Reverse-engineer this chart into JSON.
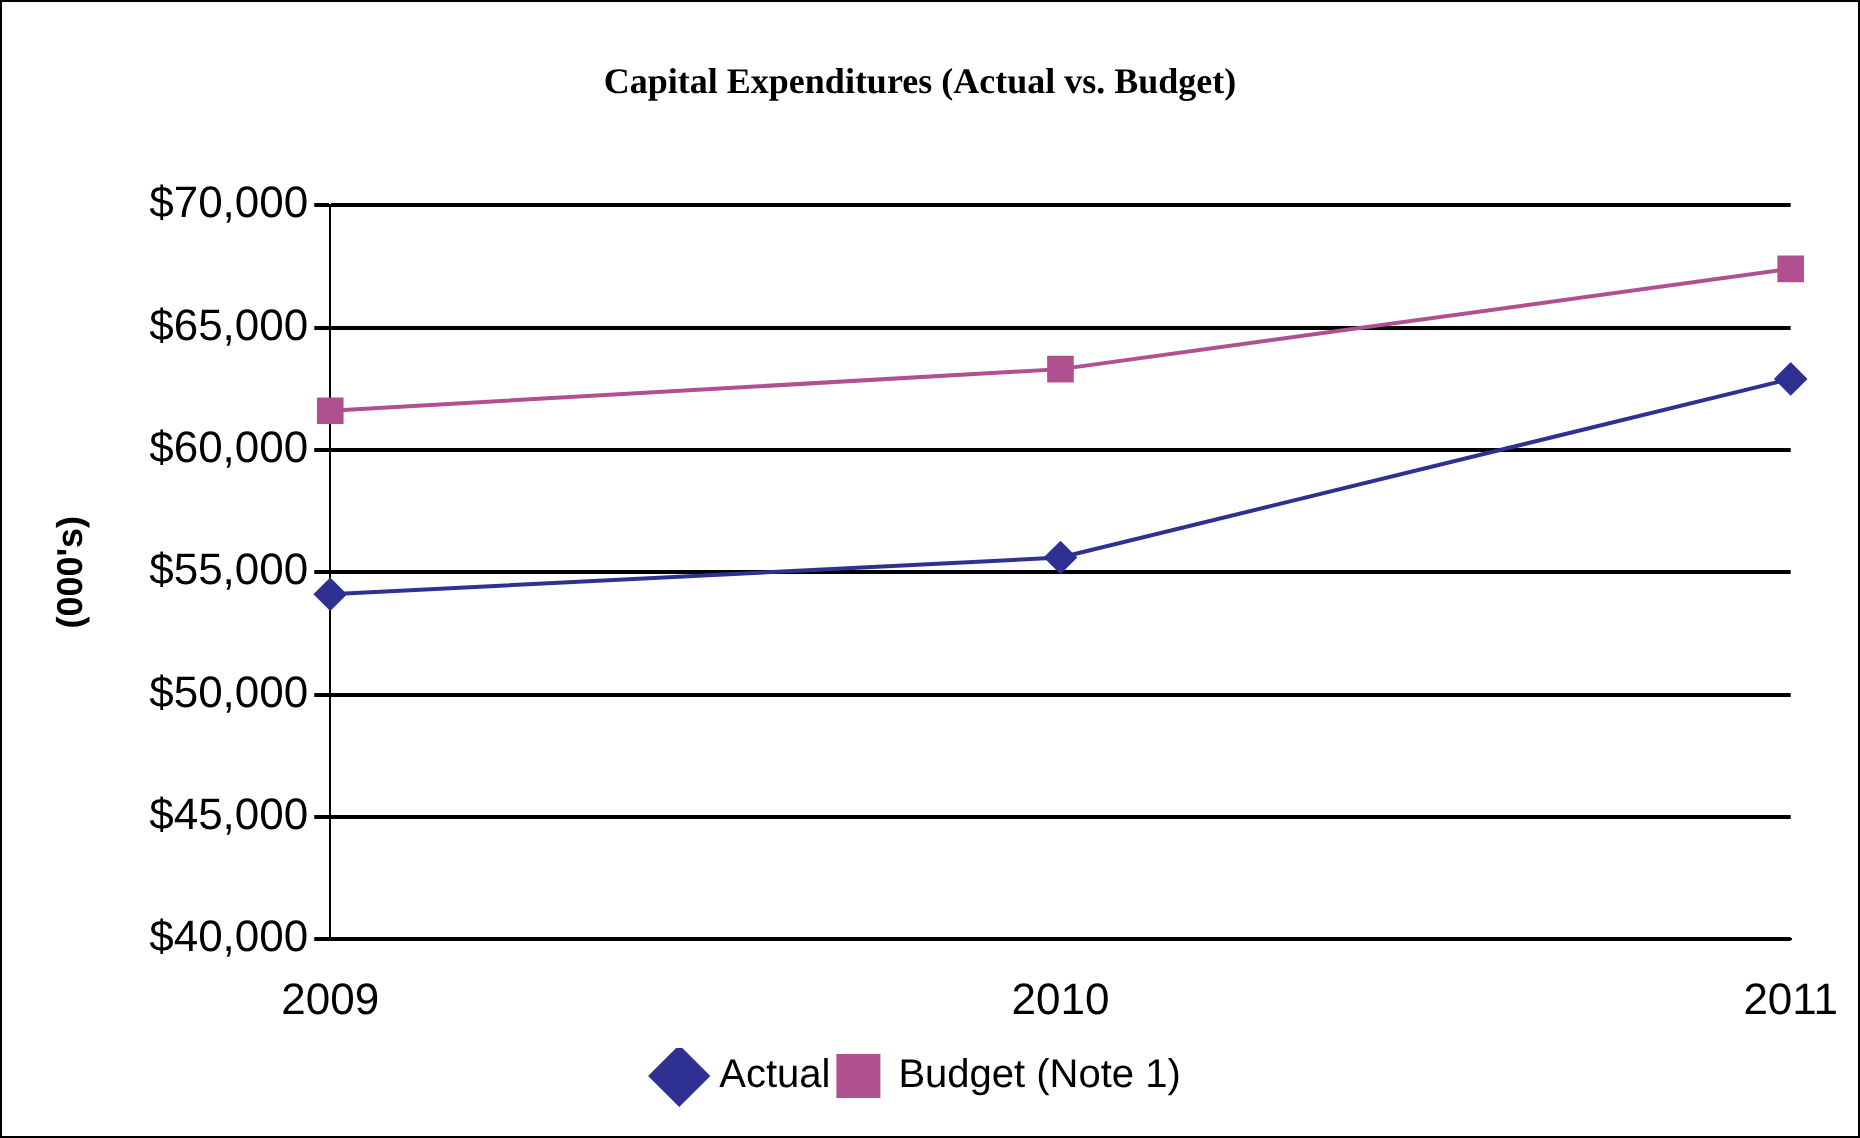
{
  "chart_data": {
    "type": "line",
    "title": "Capital Expenditures (Actual vs. Budget)",
    "ylabel": "(000's)",
    "categories": [
      "2009",
      "2010",
      "2011"
    ],
    "series": [
      {
        "name": "Actual",
        "color": "#2e3192",
        "values": [
          54100,
          55600,
          62900
        ],
        "marker": "diamond"
      },
      {
        "name": "Budget (Note 1)",
        "color": "#b0508f",
        "values": [
          61600,
          63300,
          67400
        ],
        "marker": "square"
      }
    ],
    "ylim": [
      40000,
      70000
    ],
    "yticks": [
      {
        "value": 40000,
        "label": "$40,000"
      },
      {
        "value": 45000,
        "label": "$45,000"
      },
      {
        "value": 50000,
        "label": "$50,000"
      },
      {
        "value": 55000,
        "label": "$55,000"
      },
      {
        "value": 60000,
        "label": "$60,000"
      },
      {
        "value": 65000,
        "label": "$65,000"
      },
      {
        "value": 70000,
        "label": "$70,000"
      }
    ],
    "grid": "y",
    "legend": "bottom",
    "line_style": "solid"
  }
}
